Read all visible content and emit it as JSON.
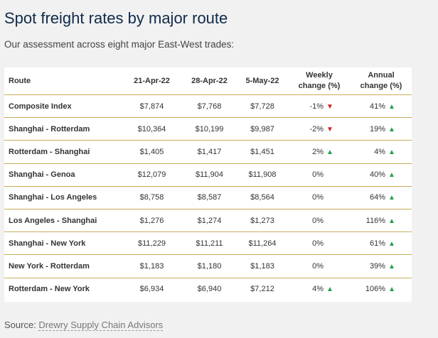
{
  "title": "Spot freight rates by major route",
  "subtitle": "Our assessment across eight major East-West trades:",
  "table": {
    "headers": {
      "route": "Route",
      "d1": "21-Apr-22",
      "d2": "28-Apr-22",
      "d3": "5-May-22",
      "weekly_line1": "Weekly",
      "weekly_line2": "change (%)",
      "annual_line1": "Annual",
      "annual_line2": "change (%)"
    },
    "rows": [
      {
        "route": "Composite Index",
        "d1": "$7,874",
        "d2": "$7,768",
        "d3": "$7,728",
        "weekly": "-1%",
        "weekly_dir": "down",
        "annual": "41%",
        "annual_dir": "up"
      },
      {
        "route": "Shanghai - Rotterdam",
        "d1": "$10,364",
        "d2": "$10,199",
        "d3": "$9,987",
        "weekly": "-2%",
        "weekly_dir": "down",
        "annual": "19%",
        "annual_dir": "up"
      },
      {
        "route": "Rotterdam - Shanghai",
        "d1": "$1,405",
        "d2": "$1,417",
        "d3": "$1,451",
        "weekly": "2%",
        "weekly_dir": "up",
        "annual": "4%",
        "annual_dir": "up"
      },
      {
        "route": "Shanghai - Genoa",
        "d1": "$12,079",
        "d2": "$11,904",
        "d3": "$11,908",
        "weekly": "0%",
        "weekly_dir": "none",
        "annual": "40%",
        "annual_dir": "up"
      },
      {
        "route": "Shanghai - Los Angeles",
        "d1": "$8,758",
        "d2": "$8,587",
        "d3": "$8,564",
        "weekly": "0%",
        "weekly_dir": "none",
        "annual": "64%",
        "annual_dir": "up"
      },
      {
        "route": "Los Angeles - Shanghai",
        "d1": "$1,276",
        "d2": "$1,274",
        "d3": "$1,273",
        "weekly": "0%",
        "weekly_dir": "none",
        "annual": "116%",
        "annual_dir": "up"
      },
      {
        "route": "Shanghai - New York",
        "d1": "$11,229",
        "d2": "$11,211",
        "d3": "$11,264",
        "weekly": "0%",
        "weekly_dir": "none",
        "annual": "61%",
        "annual_dir": "up"
      },
      {
        "route": "New York - Rotterdam",
        "d1": "$1,183",
        "d2": "$1,180",
        "d3": "$1,183",
        "weekly": "0%",
        "weekly_dir": "none",
        "annual": "39%",
        "annual_dir": "up"
      },
      {
        "route": "Rotterdam - New York",
        "d1": "$6,934",
        "d2": "$6,940",
        "d3": "$7,212",
        "weekly": "4%",
        "weekly_dir": "up",
        "annual": "106%",
        "annual_dir": "up"
      }
    ]
  },
  "source": {
    "prefix": "Source: ",
    "link_text": "Drewry Supply Chain Advisors"
  },
  "colors": {
    "up": "#22a046",
    "down": "#d01f1f",
    "rule": "#c9ad5a",
    "title": "#0f2a4a"
  }
}
